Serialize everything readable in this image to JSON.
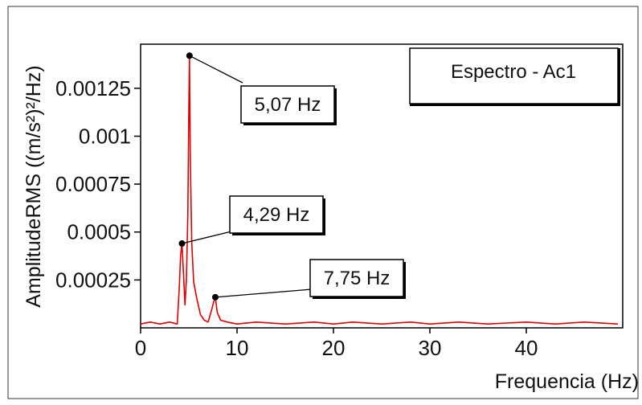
{
  "chart_data": {
    "type": "line",
    "title": "",
    "xlabel": "Frequencia (Hz)",
    "ylabel": "AmplitudeRMS ((m/s²)²/Hz)",
    "xlim": [
      0,
      50
    ],
    "ylim": [
      0,
      0.00148
    ],
    "x_ticks": [
      0,
      10,
      20,
      30,
      40
    ],
    "x_tick_labels": [
      "0",
      "10",
      "20",
      "30",
      "40"
    ],
    "y_ticks": [
      0.00025,
      0.0005,
      0.00075,
      0.001,
      0.00125
    ],
    "y_tick_labels": [
      "0.00025",
      "0.0005",
      "0.00075",
      "0.001",
      "0.00125"
    ],
    "grid": false,
    "legend": {
      "text": "Espectro - Ac1",
      "position": "top-right"
    },
    "series": [
      {
        "color": "#e00000",
        "x": [
          0,
          1,
          2,
          3,
          3.8,
          4.0,
          4.15,
          4.29,
          4.45,
          4.6,
          4.75,
          4.9,
          5.0,
          5.07,
          5.15,
          5.3,
          5.5,
          5.8,
          6.2,
          6.6,
          7.0,
          7.4,
          7.6,
          7.75,
          7.95,
          8.3,
          9,
          10,
          12,
          15,
          18,
          20,
          22,
          25,
          28,
          30,
          33,
          36,
          40,
          43,
          46,
          49.5
        ],
        "y": [
          2e-05,
          3e-05,
          2e-05,
          3e-05,
          2e-05,
          0.0002,
          0.00038,
          0.00044,
          0.00028,
          0.00012,
          0.00025,
          0.0006,
          0.00115,
          0.00142,
          0.0009,
          0.00045,
          0.00024,
          0.00016,
          7e-05,
          4e-05,
          3e-05,
          0.0001,
          0.00014,
          0.00016,
          8e-05,
          4e-05,
          3e-05,
          2e-05,
          3e-05,
          2e-05,
          3e-05,
          2e-05,
          3e-05,
          2e-05,
          3e-05,
          2e-05,
          3e-05,
          2e-05,
          3e-05,
          2e-05,
          3e-05,
          2e-05
        ]
      }
    ],
    "annotations": [
      {
        "text": "5,07 Hz",
        "x": 5.07,
        "y": 0.00142
      },
      {
        "text": "4,29 Hz",
        "x": 4.29,
        "y": 0.00044
      },
      {
        "text": "7,75 Hz",
        "x": 7.75,
        "y": 0.00016
      }
    ]
  }
}
